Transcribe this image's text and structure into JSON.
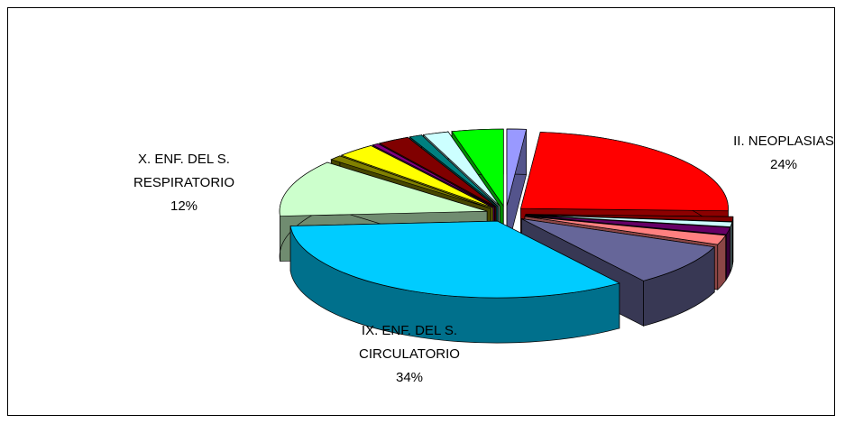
{
  "chart_data": {
    "type": "pie",
    "categories": [
      null,
      "II. NEOPLASIAS",
      null,
      null,
      null,
      null,
      null,
      "IX. ENF. DEL S. CIRCULATORIO",
      "X. ENF. DEL S. RESPIRATORIO",
      null,
      null,
      null,
      null,
      null,
      null,
      null
    ],
    "values": [
      1.5,
      24,
      1,
      1,
      1.5,
      2,
      9,
      34,
      12,
      1,
      3,
      0.5,
      2.5,
      1,
      2,
      4
    ],
    "value_labels": [
      null,
      "24%",
      null,
      null,
      null,
      null,
      null,
      "34%",
      "12%",
      null,
      null,
      null,
      null,
      null,
      null,
      null
    ],
    "colors": [
      "#9999ff",
      "#ff0000",
      "#800000",
      "#ccffff",
      "#660066",
      "#ff8080",
      "#666699",
      "#00ccff",
      "#ccffcc",
      "#808000",
      "#ffff00",
      "#800080",
      "#800000",
      "#008080",
      "#ccffff",
      "#00ff00"
    ]
  }
}
